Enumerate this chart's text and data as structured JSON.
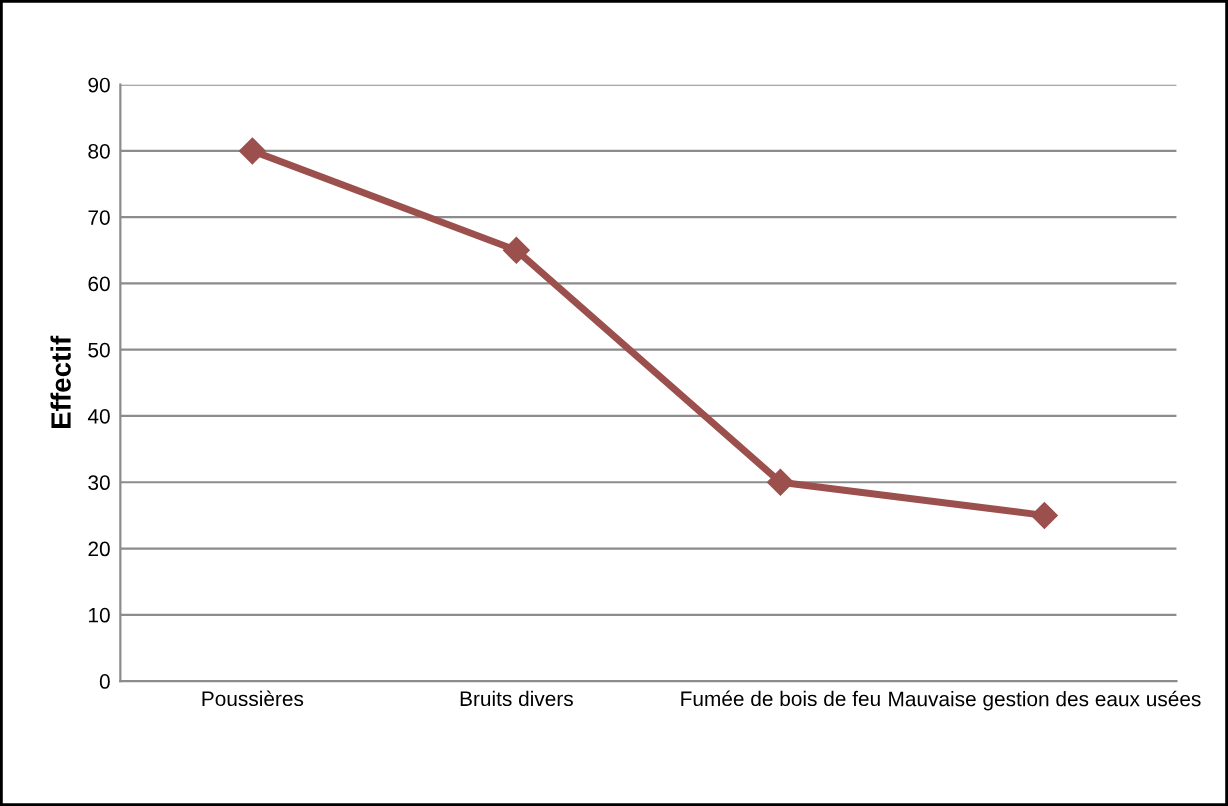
{
  "chart_data": {
    "type": "line",
    "ylabel": "Effectif",
    "categories": [
      "Poussières",
      "Bruits divers",
      "Fumée de bois de feu",
      "Mauvaise gestion des eaux usées"
    ],
    "series": [
      {
        "color": "#9c504d",
        "values": [
          80,
          65,
          30,
          25
        ]
      }
    ],
    "ylim": [
      0,
      90
    ],
    "yticks": [
      0,
      10,
      20,
      30,
      40,
      50,
      60,
      70,
      80,
      90
    ],
    "grid": "y",
    "marker": "diamond",
    "line_style": "solid"
  }
}
